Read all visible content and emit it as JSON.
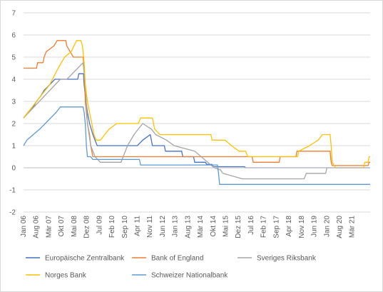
{
  "chart_data": {
    "type": "line",
    "title": "",
    "xlabel": "",
    "ylabel": "",
    "ylim": [
      -2,
      7
    ],
    "yticks": [
      "-2",
      "-1",
      "0",
      "1",
      "2",
      "3",
      "4",
      "5",
      "6",
      "7"
    ],
    "x_range": [
      2006.0,
      2022.0
    ],
    "x_ticks": [
      {
        "label": "Jan 06",
        "t": 2006.0
      },
      {
        "label": "Aug 06",
        "t": 2006.583
      },
      {
        "label": "Mär 07",
        "t": 2007.167
      },
      {
        "label": "Okt 07",
        "t": 2007.75
      },
      {
        "label": "Mai 08",
        "t": 2008.333
      },
      {
        "label": "Dez 08",
        "t": 2008.917
      },
      {
        "label": "Jul 09",
        "t": 2009.5
      },
      {
        "label": "Feb 10",
        "t": 2010.083
      },
      {
        "label": "Sep 10",
        "t": 2010.667
      },
      {
        "label": "Apr 11",
        "t": 2011.25
      },
      {
        "label": "Nov 11",
        "t": 2011.833
      },
      {
        "label": "Jun 12",
        "t": 2012.417
      },
      {
        "label": "Jan 13",
        "t": 2013.0
      },
      {
        "label": "Aug 13",
        "t": 2013.583
      },
      {
        "label": "Mär 14",
        "t": 2014.167
      },
      {
        "label": "Okt 14",
        "t": 2014.75
      },
      {
        "label": "Mai 15",
        "t": 2015.333
      },
      {
        "label": "Dez 15",
        "t": 2015.917
      },
      {
        "label": "Jul 16",
        "t": 2016.5
      },
      {
        "label": "Feb 17",
        "t": 2017.083
      },
      {
        "label": "Sep 17",
        "t": 2017.667
      },
      {
        "label": "Apr 18",
        "t": 2018.25
      },
      {
        "label": "Nov 18",
        "t": 2018.833
      },
      {
        "label": "Jun 19",
        "t": 2019.417
      },
      {
        "label": "Jan 20",
        "t": 2020.0
      },
      {
        "label": "Aug 20",
        "t": 2020.583
      },
      {
        "label": "Mär 21",
        "t": 2021.167
      }
    ],
    "grid": "horizontal",
    "legend_position": "bottom",
    "series": [
      {
        "name": "Europäische Zentralbank",
        "color": "#4472c4",
        "points": [
          [
            2006.0,
            2.25
          ],
          [
            2006.2,
            2.5
          ],
          [
            2006.45,
            2.75
          ],
          [
            2006.6,
            3.0
          ],
          [
            2006.8,
            3.25
          ],
          [
            2006.95,
            3.5
          ],
          [
            2007.2,
            3.75
          ],
          [
            2007.45,
            4.0
          ],
          [
            2008.5,
            4.0
          ],
          [
            2008.55,
            4.25
          ],
          [
            2008.77,
            4.25
          ],
          [
            2008.8,
            3.75
          ],
          [
            2008.85,
            3.25
          ],
          [
            2008.95,
            2.5
          ],
          [
            2009.05,
            2.0
          ],
          [
            2009.2,
            1.5
          ],
          [
            2009.3,
            1.25
          ],
          [
            2009.4,
            1.0
          ],
          [
            2011.25,
            1.0
          ],
          [
            2011.5,
            1.25
          ],
          [
            2011.85,
            1.5
          ],
          [
            2011.9,
            1.25
          ],
          [
            2011.95,
            1.0
          ],
          [
            2012.5,
            1.0
          ],
          [
            2012.55,
            0.75
          ],
          [
            2013.3,
            0.75
          ],
          [
            2013.35,
            0.5
          ],
          [
            2013.85,
            0.5
          ],
          [
            2013.9,
            0.25
          ],
          [
            2014.4,
            0.25
          ],
          [
            2014.45,
            0.15
          ],
          [
            2014.7,
            0.15
          ],
          [
            2014.75,
            0.05
          ],
          [
            2016.2,
            0.05
          ],
          [
            2016.25,
            0.0
          ],
          [
            2022.0,
            0.0
          ]
        ]
      },
      {
        "name": "Bank of England",
        "color": "#ed7d31",
        "points": [
          [
            2006.0,
            4.5
          ],
          [
            2006.6,
            4.5
          ],
          [
            2006.65,
            4.75
          ],
          [
            2006.9,
            4.75
          ],
          [
            2006.95,
            5.0
          ],
          [
            2007.05,
            5.25
          ],
          [
            2007.4,
            5.5
          ],
          [
            2007.55,
            5.75
          ],
          [
            2007.95,
            5.75
          ],
          [
            2008.0,
            5.5
          ],
          [
            2008.15,
            5.25
          ],
          [
            2008.3,
            5.0
          ],
          [
            2008.75,
            5.0
          ],
          [
            2008.8,
            4.5
          ],
          [
            2008.85,
            3.0
          ],
          [
            2008.95,
            2.0
          ],
          [
            2009.05,
            1.5
          ],
          [
            2009.1,
            1.0
          ],
          [
            2009.2,
            0.5
          ],
          [
            2016.55,
            0.5
          ],
          [
            2016.6,
            0.25
          ],
          [
            2017.8,
            0.25
          ],
          [
            2017.85,
            0.5
          ],
          [
            2018.58,
            0.5
          ],
          [
            2018.62,
            0.75
          ],
          [
            2020.15,
            0.75
          ],
          [
            2020.2,
            0.25
          ],
          [
            2020.25,
            0.1
          ],
          [
            2021.9,
            0.1
          ],
          [
            2021.95,
            0.25
          ],
          [
            2022.0,
            0.25
          ]
        ]
      },
      {
        "name": "Sveriges  Riksbank",
        "color": "#a5a5a5",
        "points": [
          [
            2006.0,
            2.25
          ],
          [
            2007.7,
            4.0
          ],
          [
            2008.0,
            4.0
          ],
          [
            2008.75,
            4.75
          ],
          [
            2008.85,
            3.75
          ],
          [
            2008.95,
            2.0
          ],
          [
            2009.1,
            1.0
          ],
          [
            2009.3,
            0.5
          ],
          [
            2009.55,
            0.25
          ],
          [
            2010.5,
            0.25
          ],
          [
            2010.6,
            0.5
          ],
          [
            2010.8,
            1.0
          ],
          [
            2011.1,
            1.5
          ],
          [
            2011.5,
            2.0
          ],
          [
            2011.9,
            1.75
          ],
          [
            2012.1,
            1.5
          ],
          [
            2012.6,
            1.25
          ],
          [
            2012.95,
            1.0
          ],
          [
            2013.9,
            0.75
          ],
          [
            2014.5,
            0.25
          ],
          [
            2014.8,
            0.0
          ],
          [
            2015.1,
            -0.1
          ],
          [
            2015.2,
            -0.25
          ],
          [
            2015.55,
            -0.35
          ],
          [
            2016.1,
            -0.5
          ],
          [
            2018.95,
            -0.5
          ],
          [
            2019.05,
            -0.25
          ],
          [
            2019.95,
            -0.25
          ],
          [
            2020.0,
            0.0
          ],
          [
            2022.0,
            0.0
          ]
        ]
      },
      {
        "name": "Norges Bank",
        "color": "#ffc000",
        "points": [
          [
            2006.0,
            2.25
          ],
          [
            2006.4,
            2.75
          ],
          [
            2006.8,
            3.25
          ],
          [
            2007.2,
            3.75
          ],
          [
            2007.6,
            4.5
          ],
          [
            2007.9,
            5.0
          ],
          [
            2008.2,
            5.25
          ],
          [
            2008.45,
            5.75
          ],
          [
            2008.65,
            5.75
          ],
          [
            2008.72,
            5.5
          ],
          [
            2008.8,
            4.75
          ],
          [
            2008.85,
            3.75
          ],
          [
            2008.95,
            3.0
          ],
          [
            2009.05,
            2.5
          ],
          [
            2009.15,
            2.0
          ],
          [
            2009.25,
            1.5
          ],
          [
            2009.35,
            1.25
          ],
          [
            2009.55,
            1.25
          ],
          [
            2009.75,
            1.5
          ],
          [
            2009.95,
            1.75
          ],
          [
            2010.3,
            2.0
          ],
          [
            2011.3,
            2.0
          ],
          [
            2011.4,
            2.25
          ],
          [
            2011.95,
            2.25
          ],
          [
            2012.05,
            1.75
          ],
          [
            2012.3,
            1.5
          ],
          [
            2014.65,
            1.5
          ],
          [
            2014.7,
            1.25
          ],
          [
            2015.3,
            1.25
          ],
          [
            2015.6,
            1.0
          ],
          [
            2015.95,
            0.75
          ],
          [
            2016.25,
            0.75
          ],
          [
            2016.35,
            0.5
          ],
          [
            2018.65,
            0.5
          ],
          [
            2018.7,
            0.75
          ],
          [
            2019.2,
            1.0
          ],
          [
            2019.6,
            1.25
          ],
          [
            2019.8,
            1.5
          ],
          [
            2020.15,
            1.5
          ],
          [
            2020.2,
            1.0
          ],
          [
            2020.25,
            0.25
          ],
          [
            2020.4,
            0.0
          ],
          [
            2021.7,
            0.0
          ],
          [
            2021.75,
            0.25
          ],
          [
            2021.9,
            0.25
          ],
          [
            2021.95,
            0.5
          ],
          [
            2022.0,
            0.5
          ]
        ]
      },
      {
        "name": "Schweizer Nationalbank",
        "color": "#5b9bd5",
        "points": [
          [
            2006.0,
            1.0
          ],
          [
            2006.15,
            1.25
          ],
          [
            2006.45,
            1.5
          ],
          [
            2006.75,
            1.75
          ],
          [
            2007.0,
            2.0
          ],
          [
            2007.25,
            2.25
          ],
          [
            2007.5,
            2.5
          ],
          [
            2007.7,
            2.75
          ],
          [
            2008.75,
            2.75
          ],
          [
            2008.8,
            2.5
          ],
          [
            2008.85,
            2.0
          ],
          [
            2008.9,
            1.0
          ],
          [
            2008.95,
            0.5
          ],
          [
            2009.1,
            0.5
          ],
          [
            2009.2,
            0.375
          ],
          [
            2011.35,
            0.375
          ],
          [
            2011.4,
            0.125
          ],
          [
            2014.95,
            0.125
          ],
          [
            2015.0,
            -0.25
          ],
          [
            2015.05,
            -0.75
          ],
          [
            2022.0,
            -0.75
          ]
        ]
      }
    ]
  }
}
